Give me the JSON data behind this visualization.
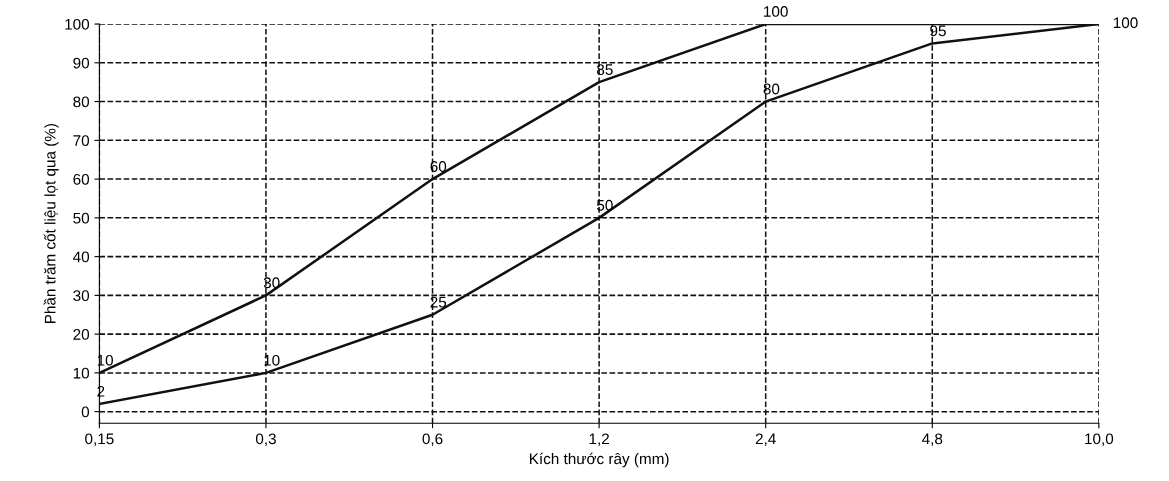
{
  "chart_data": {
    "type": "line",
    "xlabel": "Kích thước rây (mm)",
    "ylabel": "Phần trăm cốt liệu lọt qua (%)",
    "categories": [
      "0,15",
      "0,3",
      "0,6",
      "1,2",
      "2,4",
      "4,8",
      "10,0"
    ],
    "series": [
      {
        "color": "#111111",
        "values": [
          10,
          30,
          60,
          85,
          100,
          100,
          100
        ],
        "value_labels": [
          "10",
          "30",
          "60",
          "85",
          "100",
          null,
          null
        ]
      },
      {
        "color": "#111111",
        "values": [
          2,
          10,
          25,
          50,
          80,
          95,
          100
        ],
        "value_labels": [
          "2",
          "10",
          "25",
          "50",
          "80",
          "95",
          "100"
        ]
      }
    ],
    "ylim": [
      -3,
      100
    ],
    "yticks": [
      0,
      10,
      20,
      30,
      40,
      50,
      60,
      70,
      80,
      90,
      100
    ],
    "grid": true,
    "line_style": "solid",
    "marker": "none",
    "legend": false
  }
}
